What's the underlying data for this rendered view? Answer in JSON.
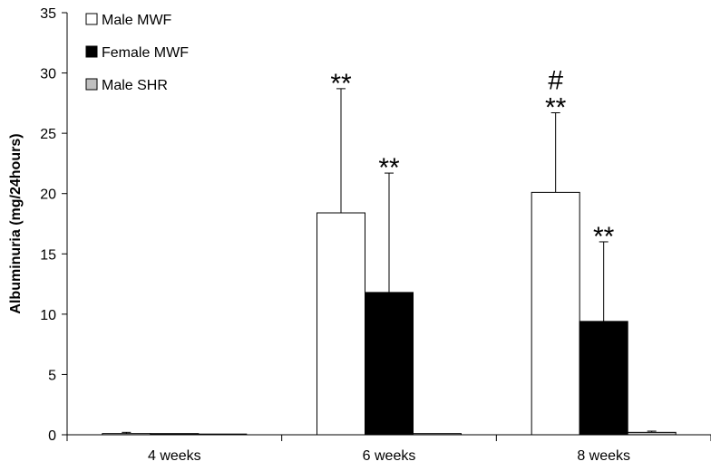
{
  "chart_data": {
    "type": "bar",
    "title": "",
    "xlabel": "",
    "ylabel": "Albuminuria (mg/24hours)",
    "ylim": [
      0,
      35
    ],
    "yticks": [
      0,
      5,
      10,
      15,
      20,
      25,
      30,
      35
    ],
    "grid": false,
    "legend_position": "top-left",
    "categories": [
      "4 weeks",
      "6 weeks",
      "8 weeks"
    ],
    "series": [
      {
        "name": "Male MWF",
        "color": "#ffffff",
        "values": [
          0.1,
          18.4,
          20.1
        ],
        "error_upper": [
          0.2,
          28.7,
          26.7
        ],
        "annotations": [
          "",
          "**",
          "#\n**"
        ]
      },
      {
        "name": "Female MWF",
        "color": "#000000",
        "values": [
          0.1,
          11.8,
          9.4
        ],
        "error_upper": [
          0.1,
          21.7,
          16.0
        ],
        "annotations": [
          "",
          "**",
          "**"
        ]
      },
      {
        "name": "Male SHR",
        "color": "#c0c0c0",
        "values": [
          0.0,
          0.1,
          0.2
        ],
        "error_upper": [
          0.0,
          0.1,
          0.3
        ],
        "annotations": [
          "",
          "",
          ""
        ]
      }
    ]
  }
}
